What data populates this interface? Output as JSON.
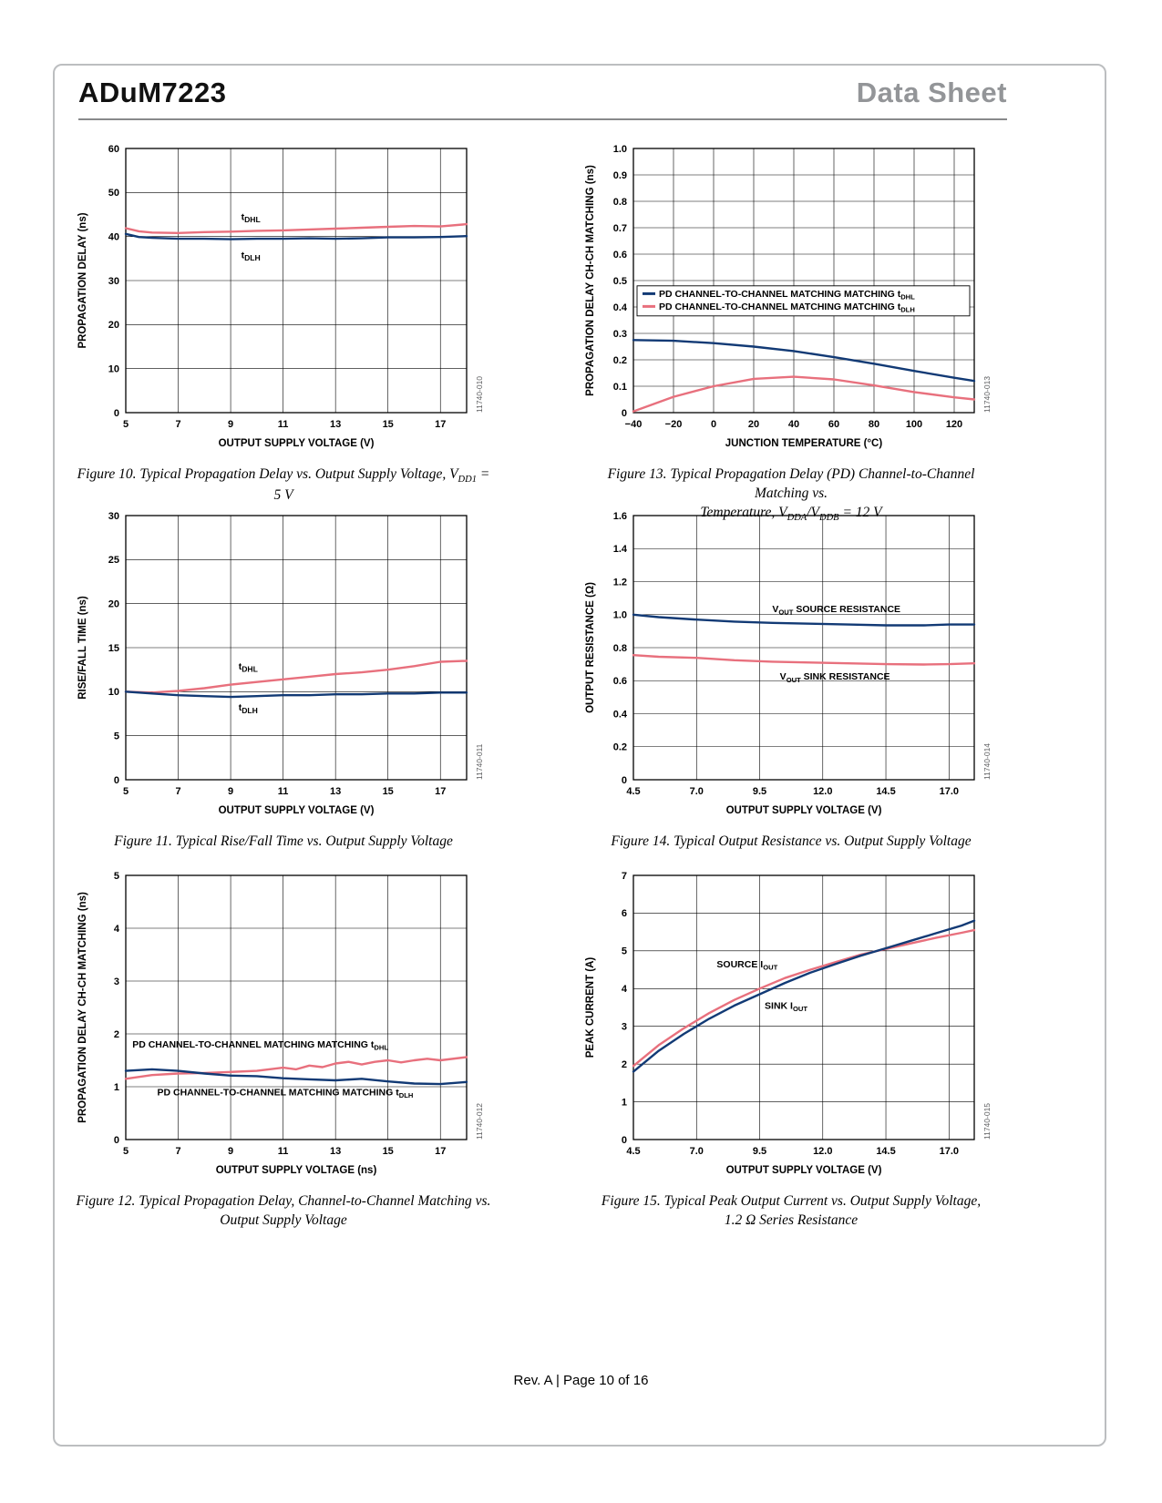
{
  "header": {
    "title": "ADuM7223",
    "doc_type": "Data Sheet"
  },
  "footer": {
    "text": "Rev. A | Page 10 of 16"
  },
  "colors": {
    "navy": "#123a75",
    "pink": "#e8707d",
    "doc_type_gray": "#939598"
  },
  "chart_data": [
    {
      "type": "line",
      "figure": "Figure 10",
      "watermark": "11740-010",
      "xlabel": "OUTPUT SUPPLY VOLTAGE (V)",
      "ylabel": "PROPAGATION DELAY (ns)",
      "xlim": [
        5,
        18
      ],
      "ylim": [
        0,
        60
      ],
      "xticks": [
        5,
        7,
        9,
        11,
        13,
        15,
        17
      ],
      "yticks": [
        0,
        10,
        20,
        30,
        40,
        50,
        60
      ],
      "series": [
        {
          "name": "tDHL",
          "color": "pink",
          "x": [
            5,
            5.5,
            6,
            7,
            8,
            9,
            10,
            11,
            12,
            13,
            14,
            15,
            16,
            17,
            18
          ],
          "y": [
            41.9,
            41.2,
            40.9,
            40.8,
            41.0,
            41.1,
            41.3,
            41.4,
            41.6,
            41.8,
            42.0,
            42.2,
            42.4,
            42.3,
            42.8
          ]
        },
        {
          "name": "tDLH",
          "color": "navy",
          "x": [
            5,
            5.5,
            6,
            7,
            8,
            9,
            10,
            11,
            12,
            13,
            14,
            15,
            16,
            17,
            18
          ],
          "y": [
            40.6,
            39.9,
            39.7,
            39.5,
            39.5,
            39.4,
            39.5,
            39.5,
            39.6,
            39.5,
            39.6,
            39.8,
            39.8,
            39.9,
            40.1
          ]
        }
      ],
      "annotations": [
        {
          "x": 9.4,
          "y": 44.5,
          "size": 12,
          "segments": [
            {
              "t": "t"
            },
            {
              "t": "DHL",
              "sub": true
            }
          ]
        },
        {
          "x": 9.4,
          "y": 35.8,
          "size": 12,
          "segments": [
            {
              "t": "t"
            },
            {
              "t": "DLH",
              "sub": true
            }
          ]
        }
      ],
      "caption": [
        {
          "t": "Figure 10. Typical Propagation Delay vs. Output Supply Voltage, V"
        },
        {
          "t": "DD1",
          "sub": true
        },
        {
          "t": " = 5 V"
        }
      ]
    },
    {
      "type": "line",
      "figure": "Figure 11",
      "watermark": "11740-011",
      "xlabel": "OUTPUT SUPPLY VOLTAGE (V)",
      "ylabel": "RISE/FALL TIME (ns)",
      "xlim": [
        5,
        18
      ],
      "ylim": [
        0,
        30
      ],
      "xticks": [
        5,
        7,
        9,
        11,
        13,
        15,
        17
      ],
      "yticks": [
        0,
        5,
        10,
        15,
        20,
        25,
        30
      ],
      "series": [
        {
          "name": "tDHL",
          "color": "pink",
          "x": [
            5,
            6,
            7,
            8,
            9,
            10,
            11,
            12,
            13,
            14,
            15,
            16,
            17,
            18
          ],
          "y": [
            10.0,
            9.9,
            10.1,
            10.4,
            10.8,
            11.1,
            11.4,
            11.7,
            12.0,
            12.2,
            12.5,
            12.9,
            13.4,
            13.5
          ]
        },
        {
          "name": "tDLH",
          "color": "navy",
          "x": [
            5,
            6,
            7,
            8,
            9,
            10,
            11,
            12,
            13,
            14,
            15,
            16,
            17,
            18
          ],
          "y": [
            10.0,
            9.8,
            9.6,
            9.5,
            9.4,
            9.5,
            9.6,
            9.6,
            9.7,
            9.7,
            9.8,
            9.8,
            9.9,
            9.9
          ]
        }
      ],
      "annotations": [
        {
          "x": 9.3,
          "y": 12.9,
          "size": 12,
          "segments": [
            {
              "t": "t"
            },
            {
              "t": "DHL",
              "sub": true
            }
          ]
        },
        {
          "x": 9.3,
          "y": 8.2,
          "size": 12,
          "segments": [
            {
              "t": "t"
            },
            {
              "t": "DLH",
              "sub": true
            }
          ]
        }
      ],
      "caption": [
        {
          "t": "Figure 11. Typical Rise/Fall Time vs. Output Supply Voltage"
        }
      ]
    },
    {
      "type": "line",
      "figure": "Figure 12",
      "watermark": "11740-012",
      "xlabel": "OUTPUT SUPPLY VOLTAGE (ns)",
      "ylabel": "PROPAGATION DELAY CH-CH MATCHING (ns)",
      "xlim": [
        5,
        18
      ],
      "ylim": [
        0,
        5
      ],
      "xticks": [
        5,
        7,
        9,
        11,
        13,
        15,
        17
      ],
      "yticks": [
        0,
        1,
        2,
        3,
        4,
        5
      ],
      "series": [
        {
          "name": "PD channel-to-channel matching tDHL",
          "color": "pink",
          "x": [
            5,
            6,
            7,
            8,
            9,
            10,
            11,
            11.5,
            12,
            12.5,
            13,
            13.5,
            14,
            14.5,
            15,
            15.5,
            16,
            16.5,
            17,
            18
          ],
          "y": [
            1.15,
            1.22,
            1.25,
            1.26,
            1.28,
            1.3,
            1.36,
            1.33,
            1.4,
            1.37,
            1.44,
            1.47,
            1.42,
            1.47,
            1.5,
            1.46,
            1.5,
            1.53,
            1.5,
            1.56
          ]
        },
        {
          "name": "PD channel-to-channel matching tDLH",
          "color": "navy",
          "x": [
            5,
            6,
            7,
            8,
            9,
            10,
            11,
            12,
            13,
            14,
            15,
            16,
            17,
            18
          ],
          "y": [
            1.3,
            1.33,
            1.3,
            1.25,
            1.21,
            1.2,
            1.16,
            1.14,
            1.12,
            1.15,
            1.1,
            1.06,
            1.05,
            1.09
          ]
        }
      ],
      "annotations": [
        {
          "x": 5.25,
          "y": 1.8,
          "segments": [
            {
              "t": "PD CHANNEL-TO-CHANNEL MATCHING MATCHING t"
            },
            {
              "t": "DHL",
              "sub": true
            }
          ]
        },
        {
          "x": 6.2,
          "y": 0.9,
          "segments": [
            {
              "t": "PD CHANNEL-TO-CHANNEL MATCHING MATCHING t"
            },
            {
              "t": "DLH",
              "sub": true
            }
          ]
        }
      ],
      "caption": [
        {
          "t": "Figure 12. Typical Propagation Delay, Channel-to-Channel Matching vs."
        },
        {
          "br": true
        },
        {
          "t": "Output Supply Voltage"
        }
      ]
    },
    {
      "type": "line",
      "figure": "Figure 13",
      "watermark": "11740-013",
      "xlabel": "JUNCTION TEMPERATURE (°C)",
      "ylabel": "PROPAGATION DELAY CH-CH MATCHING (ns)",
      "xlim": [
        -40,
        130
      ],
      "ylim": [
        0,
        1.0
      ],
      "xticks": [
        -40,
        -20,
        0,
        20,
        40,
        60,
        80,
        100,
        120
      ],
      "xtick_labels": [
        "−40",
        "−20",
        "0",
        "20",
        "40",
        "60",
        "80",
        "100",
        "120"
      ],
      "yticks": [
        0,
        0.1,
        0.2,
        0.3,
        0.4,
        0.5,
        0.6,
        0.7,
        0.8,
        0.9,
        1.0
      ],
      "ytick_labels": [
        "0",
        "0.1",
        "0.2",
        "0.3",
        "0.4",
        "0.5",
        "0.6",
        "0.7",
        "0.8",
        "0.9",
        "1.0"
      ],
      "series": [
        {
          "name": "PD channel-to-channel matching tDHL",
          "color": "navy",
          "x": [
            -40,
            -20,
            0,
            20,
            40,
            60,
            80,
            100,
            120,
            130
          ],
          "y": [
            0.275,
            0.272,
            0.263,
            0.25,
            0.233,
            0.21,
            0.185,
            0.158,
            0.132,
            0.12
          ]
        },
        {
          "name": "PD channel-to-channel matching tDLH",
          "color": "pink",
          "x": [
            -40,
            -20,
            0,
            20,
            40,
            60,
            80,
            100,
            120,
            130
          ],
          "y": [
            0.005,
            0.06,
            0.1,
            0.128,
            0.136,
            0.126,
            0.103,
            0.078,
            0.058,
            0.05
          ]
        }
      ],
      "legend": {
        "y": 0.48,
        "entries": [
          {
            "color": "navy",
            "segments": [
              {
                "t": "PD CHANNEL-TO-CHANNEL MATCHING MATCHING t"
              },
              {
                "t": "DHL",
                "sub": true
              }
            ]
          },
          {
            "color": "pink",
            "segments": [
              {
                "t": "PD CHANNEL-TO-CHANNEL MATCHING MATCHING t"
              },
              {
                "t": "DLH",
                "sub": true
              }
            ]
          }
        ]
      },
      "annotations": [],
      "caption": [
        {
          "t": "Figure 13. Typical Propagation Delay (PD) Channel-to-Channel Matching vs."
        },
        {
          "br": true
        },
        {
          "t": "Temperature, V"
        },
        {
          "t": "DDA",
          "sub": true
        },
        {
          "t": "/V"
        },
        {
          "t": "DDB",
          "sub": true
        },
        {
          "t": " = 12 V"
        }
      ]
    },
    {
      "type": "line",
      "figure": "Figure 14",
      "watermark": "11740-014",
      "xlabel": "OUTPUT SUPPLY VOLTAGE (V)",
      "ylabel": "OUTPUT RESISTANCE (Ω)",
      "xlim": [
        4.5,
        18
      ],
      "ylim": [
        0,
        1.6
      ],
      "xticks": [
        4.5,
        7,
        9.5,
        12,
        14.5,
        17
      ],
      "xtick_labels": [
        "4.5",
        "7.0",
        "9.5",
        "12.0",
        "14.5",
        "17.0"
      ],
      "yticks": [
        0,
        0.2,
        0.4,
        0.6,
        0.8,
        1.0,
        1.2,
        1.4,
        1.6
      ],
      "ytick_labels": [
        "0",
        "0.2",
        "0.4",
        "0.6",
        "0.8",
        "1.0",
        "1.2",
        "1.4",
        "1.6"
      ],
      "series": [
        {
          "name": "VOUT source resistance",
          "color": "navy",
          "x": [
            4.5,
            5.5,
            7,
            8.5,
            10,
            11.5,
            13,
            14.5,
            16,
            17,
            18
          ],
          "y": [
            1.0,
            0.985,
            0.97,
            0.958,
            0.95,
            0.945,
            0.94,
            0.935,
            0.935,
            0.94,
            0.94
          ]
        },
        {
          "name": "VOUT sink resistance",
          "color": "pink",
          "x": [
            4.5,
            5.5,
            7,
            8.5,
            10,
            11.5,
            13,
            14.5,
            16,
            17,
            18
          ],
          "y": [
            0.755,
            0.745,
            0.738,
            0.724,
            0.715,
            0.71,
            0.705,
            0.7,
            0.698,
            0.7,
            0.705
          ]
        }
      ],
      "annotations": [
        {
          "x": 10.0,
          "y": 1.035,
          "segments": [
            {
              "t": "V"
            },
            {
              "t": "OUT",
              "sub": true
            },
            {
              "t": " SOURCE RESISTANCE"
            }
          ]
        },
        {
          "x": 10.3,
          "y": 0.625,
          "segments": [
            {
              "t": "V"
            },
            {
              "t": "OUT",
              "sub": true
            },
            {
              "t": " SINK RESISTANCE"
            }
          ]
        }
      ],
      "caption": [
        {
          "t": "Figure 14. Typical Output Resistance vs. Output Supply Voltage"
        }
      ]
    },
    {
      "type": "line",
      "figure": "Figure 15",
      "watermark": "11740-015",
      "xlabel": "OUTPUT SUPPLY VOLTAGE (V)",
      "ylabel": "PEAK CURRENT (A)",
      "xlim": [
        4.5,
        18
      ],
      "ylim": [
        0,
        7
      ],
      "xticks": [
        4.5,
        7,
        9.5,
        12,
        14.5,
        17
      ],
      "xtick_labels": [
        "4.5",
        "7.0",
        "9.5",
        "12.0",
        "14.5",
        "17.0"
      ],
      "yticks": [
        0,
        1,
        2,
        3,
        4,
        5,
        6,
        7
      ],
      "series": [
        {
          "name": "SOURCE IOUT",
          "color": "pink",
          "x": [
            4.5,
            5.5,
            6.5,
            7.5,
            8.5,
            9.5,
            10.5,
            11.5,
            12.5,
            13.5,
            14.5,
            15.5,
            16.5,
            17.5,
            18
          ],
          "y": [
            1.95,
            2.5,
            2.95,
            3.35,
            3.7,
            4.0,
            4.28,
            4.5,
            4.7,
            4.9,
            5.05,
            5.2,
            5.35,
            5.48,
            5.55
          ]
        },
        {
          "name": "SINK IOUT",
          "color": "navy",
          "x": [
            4.5,
            5.5,
            6.5,
            7.5,
            8.5,
            9.5,
            10.5,
            11.5,
            12.5,
            13.5,
            14.5,
            15.5,
            16.5,
            17.5,
            18
          ],
          "y": [
            1.8,
            2.35,
            2.8,
            3.2,
            3.55,
            3.85,
            4.15,
            4.42,
            4.65,
            4.87,
            5.07,
            5.27,
            5.47,
            5.67,
            5.8
          ]
        }
      ],
      "annotations": [
        {
          "x": 7.8,
          "y": 4.65,
          "segments": [
            {
              "t": "SOURCE I"
            },
            {
              "t": "OUT",
              "sub": true
            }
          ]
        },
        {
          "x": 9.7,
          "y": 3.55,
          "segments": [
            {
              "t": "SINK I"
            },
            {
              "t": "OUT",
              "sub": true
            }
          ]
        }
      ],
      "caption": [
        {
          "t": "Figure 15. Typical Peak Output Current vs. Output Supply Voltage,"
        },
        {
          "br": true
        },
        {
          "t": "1.2 Ω Series Resistance"
        }
      ]
    }
  ]
}
